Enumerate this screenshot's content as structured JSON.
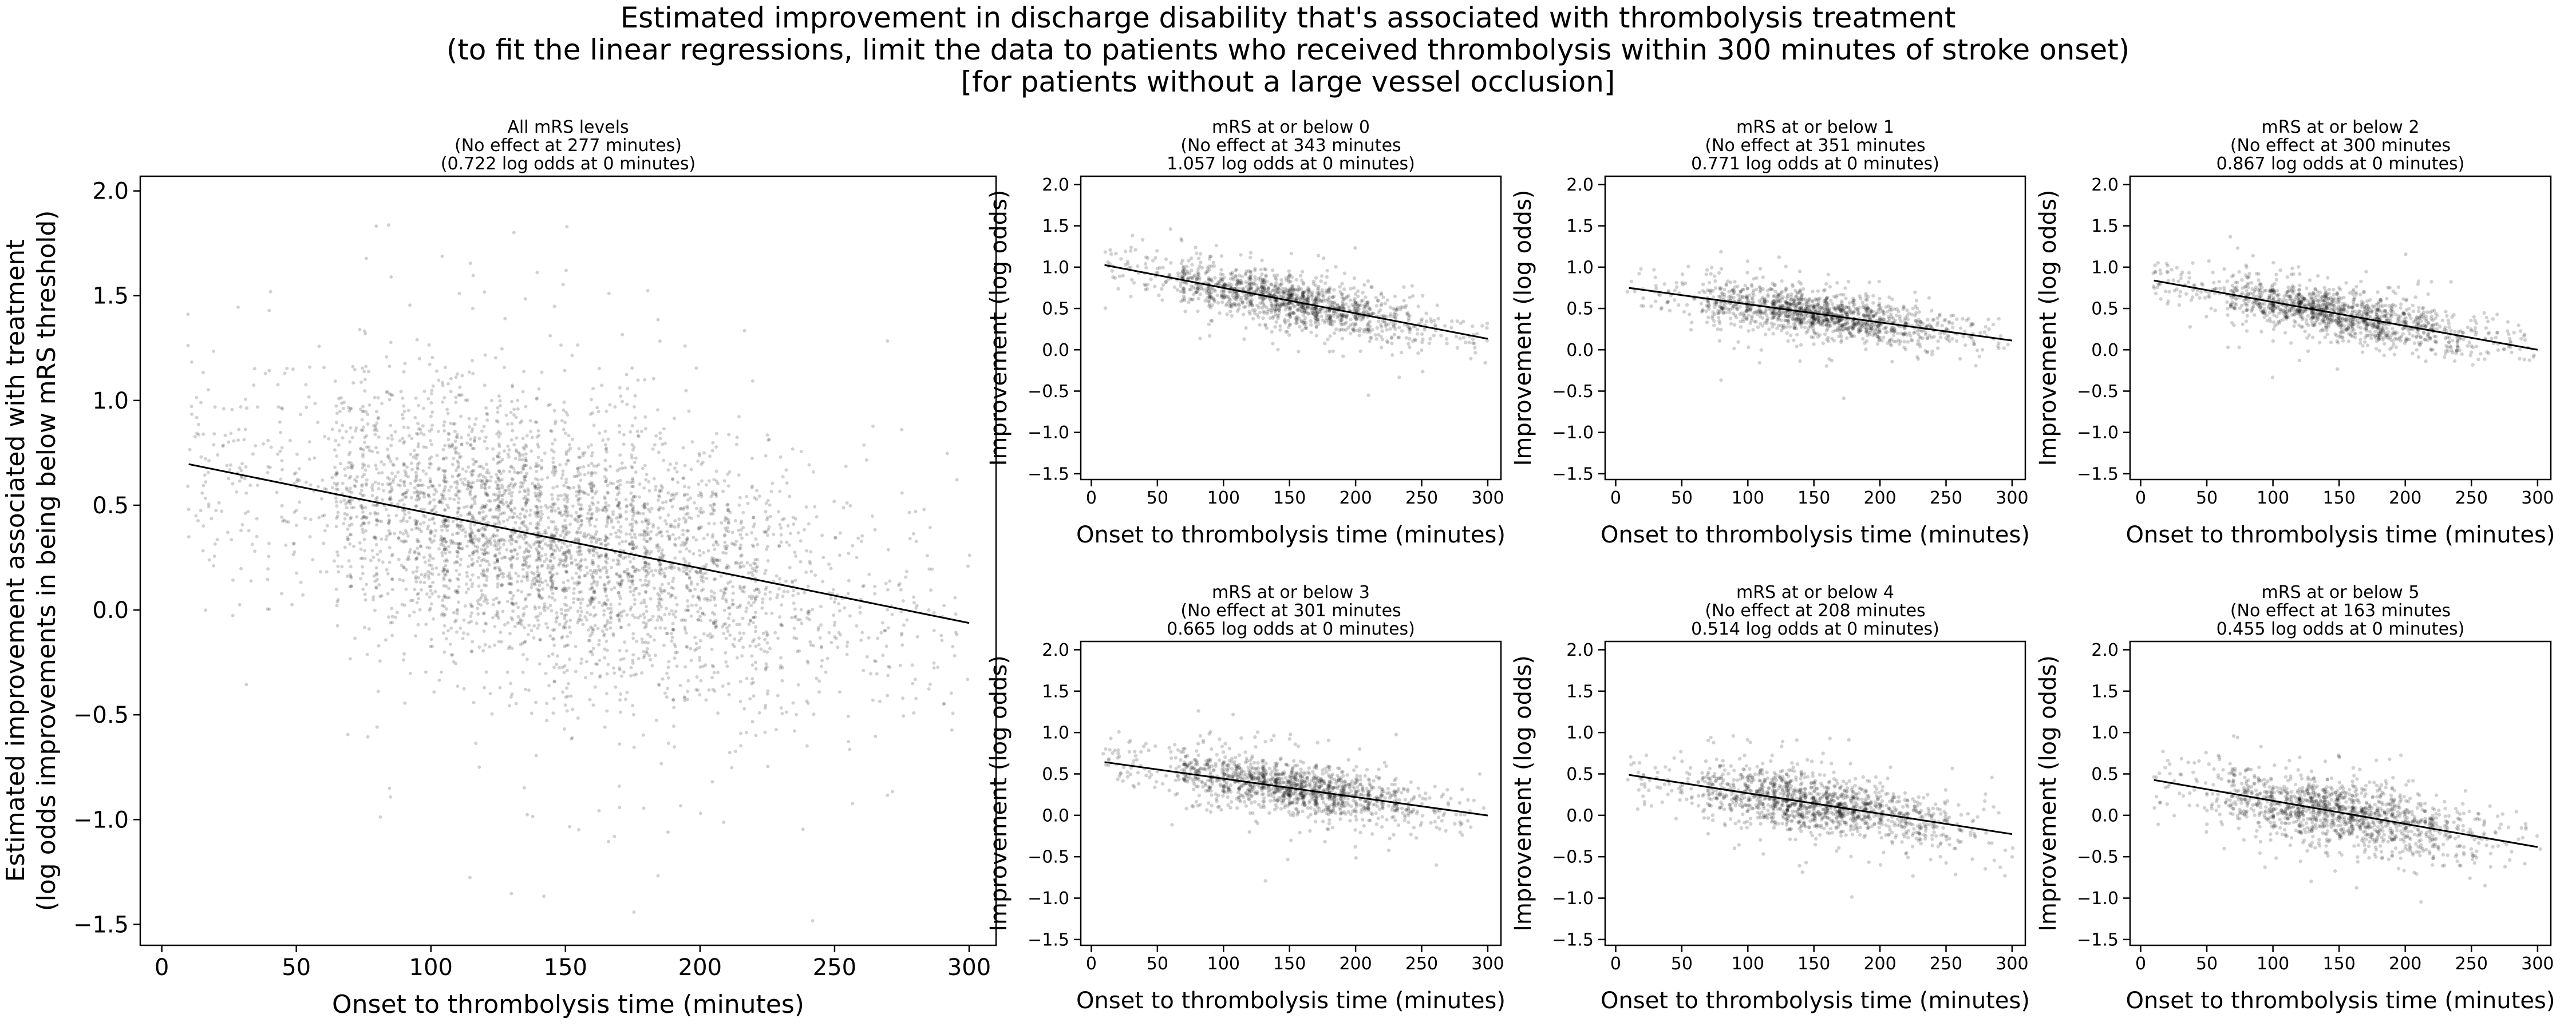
{
  "figure": {
    "title_lines": [
      "Estimated improvement in discharge disability that's associated with thrombolysis treatment",
      "(to fit the linear regressions, limit the data to patients who received thrombolysis within 300 minutes of stroke onset)",
      "[for patients without a large vessel occlusion]"
    ]
  },
  "chart_data": [
    {
      "type": "scatter",
      "title_lines": [
        "All mRS levels",
        "(No effect at 277 minutes)",
        "(0.722 log odds at 0 minutes)"
      ],
      "xlabel": "Onset to thrombolysis time (minutes)",
      "ylabel_lines": [
        "Estimated improvement associated with treatment",
        "(log odds improvements in being below mRS threshold)"
      ],
      "xlim": [
        -8,
        310
      ],
      "ylim": [
        -1.6,
        2.07
      ],
      "xticks": [
        0,
        50,
        100,
        150,
        200,
        250,
        300
      ],
      "yticks": [
        -1.5,
        -1.0,
        -0.5,
        0.0,
        0.5,
        1.0,
        1.5,
        2.0
      ],
      "ytick_labels": [
        "−1.5",
        "−1.0",
        "−0.5",
        "0.0",
        "0.5",
        "1.0",
        "1.5",
        "2.0"
      ],
      "fit": {
        "x": [
          10,
          300
        ],
        "y": [
          0.696,
          -0.062
        ]
      },
      "scatter": {
        "x_range": [
          10,
          300
        ],
        "density_center": 140,
        "spread": 0.3,
        "approx_points": 4200
      }
    },
    {
      "type": "scatter",
      "title_lines": [
        "mRS at or below 0",
        "(No effect at 343 minutes",
        "1.057 log odds at 0 minutes)"
      ],
      "xlabel": "Onset to thrombolysis time (minutes)",
      "ylabel": "Improvement (log odds)",
      "xlim": [
        -8,
        310
      ],
      "ylim": [
        -1.57,
        2.1
      ],
      "xticks": [
        0,
        50,
        100,
        150,
        200,
        250,
        300
      ],
      "yticks": [
        -1.5,
        -1.0,
        -0.5,
        0.0,
        0.5,
        1.0,
        1.5,
        2.0
      ],
      "ytick_labels": [
        "−1.5",
        "−1.0",
        "−0.5",
        "0.0",
        "0.5",
        "1.0",
        "1.5",
        "2.0"
      ],
      "fit": {
        "x": [
          10,
          300
        ],
        "y": [
          1.026,
          0.133
        ]
      },
      "scatter": {
        "x_range": [
          10,
          300
        ],
        "density_center": 150,
        "spread": 0.15,
        "approx_points": 1400
      }
    },
    {
      "type": "scatter",
      "title_lines": [
        "mRS at or below 1",
        "(No effect at 351 minutes",
        "0.771 log odds at 0 minutes)"
      ],
      "xlabel": "Onset to thrombolysis time (minutes)",
      "ylabel": "Improvement (log odds)",
      "xlim": [
        -8,
        310
      ],
      "ylim": [
        -1.57,
        2.1
      ],
      "xticks": [
        0,
        50,
        100,
        150,
        200,
        250,
        300
      ],
      "yticks": [
        -1.5,
        -1.0,
        -0.5,
        0.0,
        0.5,
        1.0,
        1.5,
        2.0
      ],
      "ytick_labels": [
        "−1.5",
        "−1.0",
        "−0.5",
        "0.0",
        "0.5",
        "1.0",
        "1.5",
        "2.0"
      ],
      "fit": {
        "x": [
          10,
          300
        ],
        "y": [
          0.749,
          0.112
        ]
      },
      "scatter": {
        "x_range": [
          10,
          300
        ],
        "density_center": 150,
        "spread": 0.13,
        "approx_points": 1400
      }
    },
    {
      "type": "scatter",
      "title_lines": [
        "mRS at or below 2",
        "(No effect at 300 minutes",
        "0.867 log odds at 0 minutes)"
      ],
      "xlabel": "Onset to thrombolysis time (minutes)",
      "ylabel": "Improvement (log odds)",
      "xlim": [
        -8,
        310
      ],
      "ylim": [
        -1.57,
        2.1
      ],
      "xticks": [
        0,
        50,
        100,
        150,
        200,
        250,
        300
      ],
      "yticks": [
        -1.5,
        -1.0,
        -0.5,
        0.0,
        0.5,
        1.0,
        1.5,
        2.0
      ],
      "ytick_labels": [
        "−1.5",
        "−1.0",
        "−0.5",
        "0.0",
        "0.5",
        "1.0",
        "1.5",
        "2.0"
      ],
      "fit": {
        "x": [
          10,
          300
        ],
        "y": [
          0.838,
          0.0
        ]
      },
      "scatter": {
        "x_range": [
          10,
          300
        ],
        "density_center": 150,
        "spread": 0.14,
        "approx_points": 1400
      }
    },
    {
      "type": "scatter",
      "title_lines": [
        "mRS at or below 3",
        "(No effect at 301 minutes",
        "0.665 log odds at 0 minutes)"
      ],
      "xlabel": "Onset to thrombolysis time (minutes)",
      "ylabel": "Improvement (log odds)",
      "xlim": [
        -8,
        310
      ],
      "ylim": [
        -1.57,
        2.1
      ],
      "xticks": [
        0,
        50,
        100,
        150,
        200,
        250,
        300
      ],
      "yticks": [
        -1.5,
        -1.0,
        -0.5,
        0.0,
        0.5,
        1.0,
        1.5,
        2.0
      ],
      "ytick_labels": [
        "−1.5",
        "−1.0",
        "−0.5",
        "0.0",
        "0.5",
        "1.0",
        "1.5",
        "2.0"
      ],
      "fit": {
        "x": [
          10,
          300
        ],
        "y": [
          0.643,
          -0.002
        ]
      },
      "scatter": {
        "x_range": [
          10,
          300
        ],
        "density_center": 150,
        "spread": 0.15,
        "approx_points": 1400
      }
    },
    {
      "type": "scatter",
      "title_lines": [
        "mRS at or below 4",
        "(No effect at 208 minutes",
        "0.514 log odds at 0 minutes)"
      ],
      "xlabel": "Onset to thrombolysis time (minutes)",
      "ylabel": "Improvement (log odds)",
      "xlim": [
        -8,
        310
      ],
      "ylim": [
        -1.57,
        2.1
      ],
      "xticks": [
        0,
        50,
        100,
        150,
        200,
        250,
        300
      ],
      "yticks": [
        -1.5,
        -1.0,
        -0.5,
        0.0,
        0.5,
        1.0,
        1.5,
        2.0
      ],
      "ytick_labels": [
        "−1.5",
        "−1.0",
        "−0.5",
        "0.0",
        "0.5",
        "1.0",
        "1.5",
        "2.0"
      ],
      "fit": {
        "x": [
          10,
          300
        ],
        "y": [
          0.489,
          -0.227
        ]
      },
      "scatter": {
        "x_range": [
          10,
          300
        ],
        "density_center": 150,
        "spread": 0.17,
        "approx_points": 1400
      }
    },
    {
      "type": "scatter",
      "title_lines": [
        "mRS at or below 5",
        "(No effect at 163 minutes",
        "0.455 log odds at 0 minutes)"
      ],
      "xlabel": "Onset to thrombolysis time (minutes)",
      "ylabel": "Improvement (log odds)",
      "xlim": [
        -8,
        310
      ],
      "ylim": [
        -1.57,
        2.1
      ],
      "xticks": [
        0,
        50,
        100,
        150,
        200,
        250,
        300
      ],
      "yticks": [
        -1.5,
        -1.0,
        -0.5,
        0.0,
        0.5,
        1.0,
        1.5,
        2.0
      ],
      "ytick_labels": [
        "−1.5",
        "−1.0",
        "−0.5",
        "0.0",
        "0.5",
        "1.0",
        "1.5",
        "2.0"
      ],
      "fit": {
        "x": [
          10,
          300
        ],
        "y": [
          0.427,
          -0.383
        ]
      },
      "scatter": {
        "x_range": [
          10,
          300
        ],
        "density_center": 150,
        "spread": 0.19,
        "approx_points": 1400
      }
    }
  ]
}
